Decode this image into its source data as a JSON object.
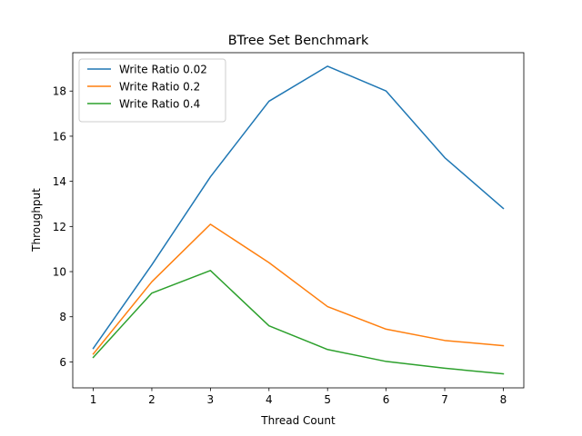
{
  "chart_data": {
    "type": "line",
    "title": "BTree Set Benchmark",
    "xlabel": "Thread Count",
    "ylabel": "Throughput",
    "x": [
      1,
      2,
      3,
      4,
      5,
      6,
      7,
      8
    ],
    "xlim": [
      0.65,
      8.35
    ],
    "ylim": [
      4.85,
      19.7
    ],
    "xticks": [
      1,
      2,
      3,
      4,
      5,
      6,
      7,
      8
    ],
    "yticks": [
      6,
      8,
      10,
      12,
      14,
      16,
      18
    ],
    "grid": false,
    "legend_position": "top-left",
    "series": [
      {
        "name": "Write Ratio 0.02",
        "color": "#1f77b4",
        "values": [
          6.6,
          10.3,
          14.2,
          17.55,
          19.1,
          18.0,
          15.05,
          12.8
        ]
      },
      {
        "name": "Write Ratio 0.2",
        "color": "#ff7f0e",
        "values": [
          6.35,
          9.55,
          12.1,
          10.4,
          8.45,
          7.45,
          6.95,
          6.72
        ]
      },
      {
        "name": "Write Ratio 0.4",
        "color": "#2ca02c",
        "values": [
          6.2,
          9.05,
          10.05,
          7.6,
          6.55,
          6.02,
          5.72,
          5.47
        ]
      }
    ]
  }
}
